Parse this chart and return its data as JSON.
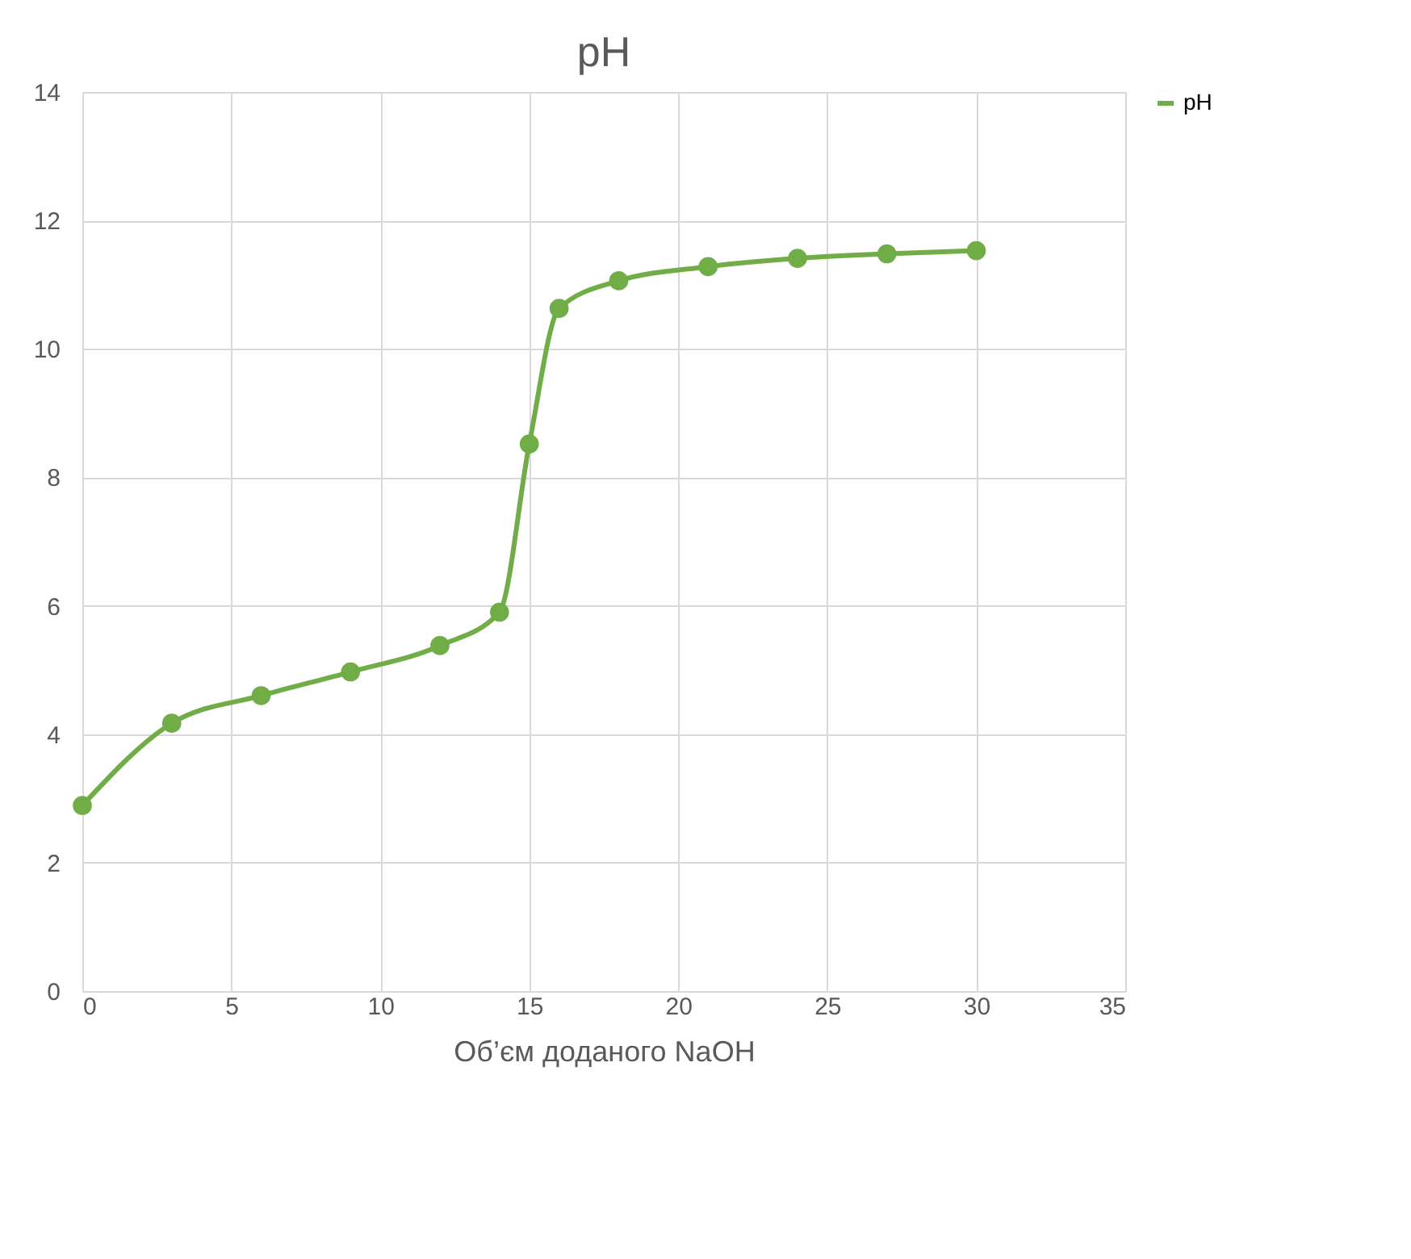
{
  "chart_data": {
    "type": "line",
    "title": "pH",
    "xlabel": "Об’єм доданого NaOH",
    "x": [
      0,
      3,
      6,
      9,
      12,
      14,
      15,
      16,
      18,
      21,
      24,
      27,
      30
    ],
    "series": [
      {
        "name": "pH",
        "color": "#70ad47",
        "values": [
          2.89,
          4.17,
          4.6,
          4.97,
          5.38,
          5.9,
          8.52,
          10.63,
          11.06,
          11.28,
          11.41,
          11.48,
          11.53
        ]
      }
    ],
    "xlim": [
      0,
      35
    ],
    "xticks": [
      0,
      5,
      10,
      15,
      20,
      25,
      30,
      35
    ],
    "ylim": [
      0,
      14
    ],
    "yticks": [
      0,
      2,
      4,
      6,
      8,
      10,
      12,
      14
    ],
    "grid": true,
    "legend": "right",
    "marker": "circle",
    "line_style": "solid"
  }
}
